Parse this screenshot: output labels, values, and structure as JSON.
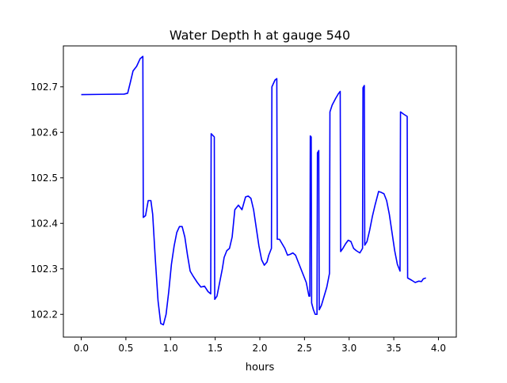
{
  "chart_data": {
    "type": "line",
    "title": "Water Depth h at gauge 540",
    "xlabel": "hours",
    "ylabel": "",
    "xlim": [
      -0.2,
      4.2
    ],
    "ylim": [
      102.15,
      102.79
    ],
    "x_ticks": [
      {
        "value": 0.0,
        "label": "0.0"
      },
      {
        "value": 0.5,
        "label": "0.5"
      },
      {
        "value": 1.0,
        "label": "1.0"
      },
      {
        "value": 1.5,
        "label": "1.5"
      },
      {
        "value": 2.0,
        "label": "2.0"
      },
      {
        "value": 2.5,
        "label": "2.5"
      },
      {
        "value": 3.0,
        "label": "3.0"
      },
      {
        "value": 3.5,
        "label": "3.5"
      },
      {
        "value": 4.0,
        "label": "4.0"
      }
    ],
    "y_ticks": [
      {
        "value": 102.2,
        "label": "102.2"
      },
      {
        "value": 102.3,
        "label": "102.3"
      },
      {
        "value": 102.4,
        "label": "102.4"
      },
      {
        "value": 102.5,
        "label": "102.5"
      },
      {
        "value": 102.6,
        "label": "102.6"
      },
      {
        "value": 102.7,
        "label": "102.7"
      }
    ],
    "grid": false,
    "legend": "none",
    "series": [
      {
        "color": "#0000ff",
        "points": [
          [
            0.0,
            102.683
          ],
          [
            0.48,
            102.684
          ],
          [
            0.52,
            102.686
          ],
          [
            0.55,
            102.71
          ],
          [
            0.58,
            102.735
          ],
          [
            0.62,
            102.745
          ],
          [
            0.66,
            102.762
          ],
          [
            0.69,
            102.767
          ],
          [
            0.695,
            102.413
          ],
          [
            0.72,
            102.417
          ],
          [
            0.75,
            102.45
          ],
          [
            0.78,
            102.45
          ],
          [
            0.8,
            102.42
          ],
          [
            0.83,
            102.32
          ],
          [
            0.86,
            102.23
          ],
          [
            0.89,
            102.18
          ],
          [
            0.92,
            102.177
          ],
          [
            0.95,
            102.2
          ],
          [
            0.98,
            102.25
          ],
          [
            1.01,
            102.31
          ],
          [
            1.04,
            102.35
          ],
          [
            1.07,
            102.38
          ],
          [
            1.1,
            102.393
          ],
          [
            1.13,
            102.393
          ],
          [
            1.16,
            102.37
          ],
          [
            1.19,
            102.33
          ],
          [
            1.22,
            102.295
          ],
          [
            1.25,
            102.285
          ],
          [
            1.3,
            102.27
          ],
          [
            1.34,
            102.26
          ],
          [
            1.38,
            102.262
          ],
          [
            1.42,
            102.25
          ],
          [
            1.45,
            102.245
          ],
          [
            1.455,
            102.597
          ],
          [
            1.49,
            102.59
          ],
          [
            1.495,
            102.233
          ],
          [
            1.52,
            102.24
          ],
          [
            1.55,
            102.27
          ],
          [
            1.58,
            102.3
          ],
          [
            1.6,
            102.325
          ],
          [
            1.63,
            102.34
          ],
          [
            1.66,
            102.345
          ],
          [
            1.69,
            102.37
          ],
          [
            1.72,
            102.43
          ],
          [
            1.76,
            102.44
          ],
          [
            1.8,
            102.43
          ],
          [
            1.84,
            102.458
          ],
          [
            1.87,
            102.46
          ],
          [
            1.9,
            102.455
          ],
          [
            1.93,
            102.43
          ],
          [
            1.96,
            102.39
          ],
          [
            1.99,
            102.35
          ],
          [
            2.02,
            102.32
          ],
          [
            2.05,
            102.308
          ],
          [
            2.08,
            102.315
          ],
          [
            2.1,
            102.33
          ],
          [
            2.13,
            102.345
          ],
          [
            2.135,
            102.7
          ],
          [
            2.17,
            102.715
          ],
          [
            2.19,
            102.718
          ],
          [
            2.195,
            102.365
          ],
          [
            2.22,
            102.365
          ],
          [
            2.25,
            102.355
          ],
          [
            2.28,
            102.345
          ],
          [
            2.31,
            102.33
          ],
          [
            2.34,
            102.332
          ],
          [
            2.37,
            102.335
          ],
          [
            2.4,
            102.33
          ],
          [
            2.43,
            102.315
          ],
          [
            2.46,
            102.3
          ],
          [
            2.49,
            102.285
          ],
          [
            2.52,
            102.27
          ],
          [
            2.55,
            102.24
          ],
          [
            2.56,
            102.24
          ],
          [
            2.565,
            102.592
          ],
          [
            2.575,
            102.59
          ],
          [
            2.58,
            102.225
          ],
          [
            2.6,
            102.21
          ],
          [
            2.62,
            102.2
          ],
          [
            2.64,
            102.2
          ],
          [
            2.645,
            102.555
          ],
          [
            2.66,
            102.56
          ],
          [
            2.665,
            102.21
          ],
          [
            2.69,
            102.22
          ],
          [
            2.72,
            102.24
          ],
          [
            2.75,
            102.26
          ],
          [
            2.78,
            102.29
          ],
          [
            2.785,
            102.645
          ],
          [
            2.81,
            102.66
          ],
          [
            2.85,
            102.675
          ],
          [
            2.88,
            102.685
          ],
          [
            2.9,
            102.69
          ],
          [
            2.905,
            102.338
          ],
          [
            2.93,
            102.345
          ],
          [
            2.96,
            102.355
          ],
          [
            2.99,
            102.363
          ],
          [
            3.02,
            102.36
          ],
          [
            3.05,
            102.345
          ],
          [
            3.08,
            102.34
          ],
          [
            3.12,
            102.335
          ],
          [
            3.15,
            102.345
          ],
          [
            3.155,
            102.698
          ],
          [
            3.17,
            102.703
          ],
          [
            3.175,
            102.352
          ],
          [
            3.2,
            102.36
          ],
          [
            3.23,
            102.385
          ],
          [
            3.26,
            102.415
          ],
          [
            3.29,
            102.44
          ],
          [
            3.33,
            102.47
          ],
          [
            3.36,
            102.468
          ],
          [
            3.39,
            102.465
          ],
          [
            3.42,
            102.45
          ],
          [
            3.45,
            102.42
          ],
          [
            3.48,
            102.38
          ],
          [
            3.51,
            102.34
          ],
          [
            3.54,
            102.31
          ],
          [
            3.57,
            102.295
          ],
          [
            3.575,
            102.645
          ],
          [
            3.61,
            102.64
          ],
          [
            3.65,
            102.635
          ],
          [
            3.655,
            102.28
          ],
          [
            3.7,
            102.275
          ],
          [
            3.74,
            102.27
          ],
          [
            3.78,
            102.273
          ],
          [
            3.81,
            102.272
          ],
          [
            3.83,
            102.278
          ],
          [
            3.86,
            102.28
          ]
        ]
      }
    ]
  }
}
